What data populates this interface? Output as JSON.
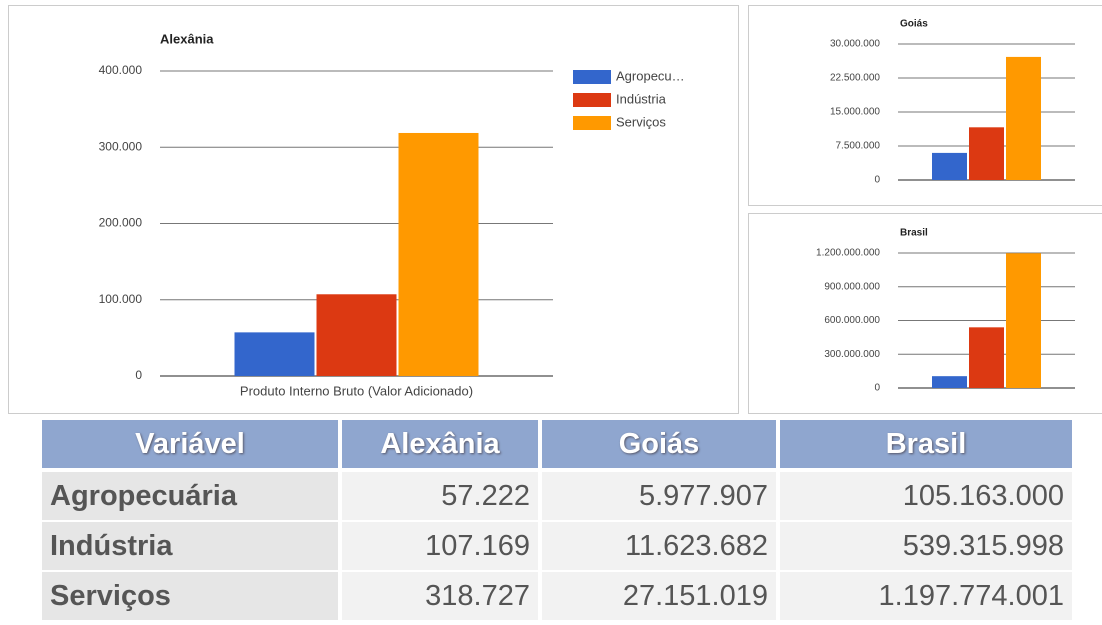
{
  "chart_data": [
    {
      "type": "bar",
      "title": "Alexânia",
      "categories": [
        "Produto Interno Bruto (Valor Adicionado)"
      ],
      "series": [
        {
          "name": "Agropecu…",
          "color": "#3366cc",
          "values": [
            57222
          ]
        },
        {
          "name": "Indústria",
          "color": "#dc3912",
          "values": [
            107169
          ]
        },
        {
          "name": "Serviços",
          "color": "#ff9900",
          "values": [
            318727
          ]
        }
      ],
      "ylim": [
        0,
        400000
      ],
      "yticks": [
        0,
        {
          "value": 100000,
          "label": "100.000"
        },
        {
          "value": 200000,
          "label": "200.000"
        },
        {
          "value": 300000,
          "label": "300.000"
        },
        {
          "value": 400000,
          "label": "400.000"
        }
      ],
      "grid": true,
      "legend": "right"
    },
    {
      "type": "bar",
      "title": "Goiás",
      "categories": [
        null
      ],
      "series": [
        {
          "color": "#3366cc",
          "values": [
            5977907
          ]
        },
        {
          "color": "#dc3912",
          "values": [
            11623682
          ]
        },
        {
          "color": "#ff9900",
          "values": [
            27151019
          ]
        }
      ],
      "ylim": [
        0,
        30000000
      ],
      "yticks": [
        0,
        {
          "value": 7500000,
          "label": "7.500.000"
        },
        {
          "value": 15000000,
          "label": "15.000.000"
        },
        {
          "value": 22500000,
          "label": "22.500.000"
        },
        {
          "value": 30000000,
          "label": "30.000.000"
        }
      ],
      "grid": true
    },
    {
      "type": "bar",
      "title": "Brasil",
      "categories": [
        null
      ],
      "series": [
        {
          "color": "#3366cc",
          "values": [
            105163000
          ]
        },
        {
          "color": "#dc3912",
          "values": [
            539315998
          ]
        },
        {
          "color": "#ff9900",
          "values": [
            1197774001
          ]
        }
      ],
      "ylim": [
        0,
        1200000000
      ],
      "yticks": [
        0,
        {
          "value": 300000000,
          "label": "300.000.000"
        },
        {
          "value": 600000000,
          "label": "600.000.000"
        },
        {
          "value": 900000000,
          "label": "900.000.000"
        },
        {
          "value": 1200000000,
          "label": "1.200.000.000"
        }
      ],
      "grid": true
    }
  ],
  "table": {
    "header": [
      "Variável",
      "Alexânia",
      "Goiás",
      "Brasil"
    ],
    "rows": [
      [
        "Agropecuária",
        "57.222",
        "5.977.907",
        "105.163.000"
      ],
      [
        "Indústria",
        "107.169",
        "11.623.682",
        "539.315.998"
      ],
      [
        "Serviços",
        "318.727",
        "27.151.019",
        "1.197.774.001"
      ]
    ]
  }
}
